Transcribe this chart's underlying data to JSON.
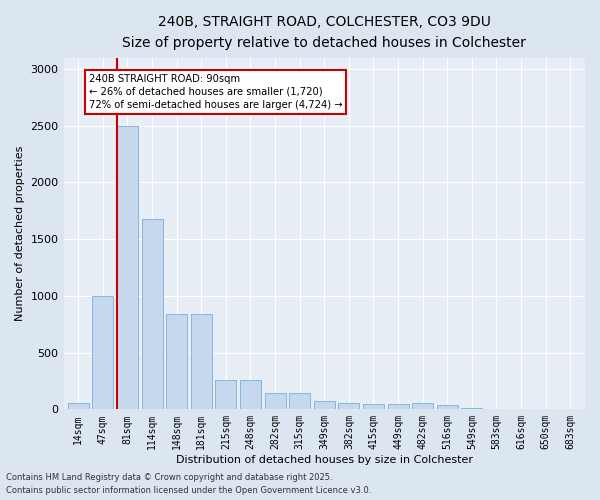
{
  "title1": "240B, STRAIGHT ROAD, COLCHESTER, CO3 9DU",
  "title2": "Size of property relative to detached houses in Colchester",
  "xlabel": "Distribution of detached houses by size in Colchester",
  "ylabel": "Number of detached properties",
  "categories": [
    "14sqm",
    "47sqm",
    "81sqm",
    "114sqm",
    "148sqm",
    "181sqm",
    "215sqm",
    "248sqm",
    "282sqm",
    "315sqm",
    "349sqm",
    "382sqm",
    "415sqm",
    "449sqm",
    "482sqm",
    "516sqm",
    "549sqm",
    "583sqm",
    "616sqm",
    "650sqm",
    "683sqm"
  ],
  "values": [
    55,
    1000,
    2500,
    1680,
    840,
    840,
    260,
    260,
    140,
    140,
    70,
    55,
    50,
    45,
    55,
    40,
    10,
    5,
    5,
    2,
    2
  ],
  "bar_color": "#c5d8ed",
  "bar_edge_color": "#7bafd4",
  "subject_line_color": "#cc0000",
  "annotation_text": "240B STRAIGHT ROAD: 90sqm\n← 26% of detached houses are smaller (1,720)\n72% of semi-detached houses are larger (4,724) →",
  "annotation_box_color": "#ffffff",
  "annotation_box_edge": "#cc0000",
  "ylim": [
    0,
    3100
  ],
  "yticks": [
    0,
    500,
    1000,
    1500,
    2000,
    2500,
    3000
  ],
  "footnote1": "Contains HM Land Registry data © Crown copyright and database right 2025.",
  "footnote2": "Contains public sector information licensed under the Open Government Licence v3.0.",
  "background_color": "#dce6f0",
  "plot_bg_color": "#e8eef5",
  "title1_fontsize": 10,
  "title2_fontsize": 9
}
